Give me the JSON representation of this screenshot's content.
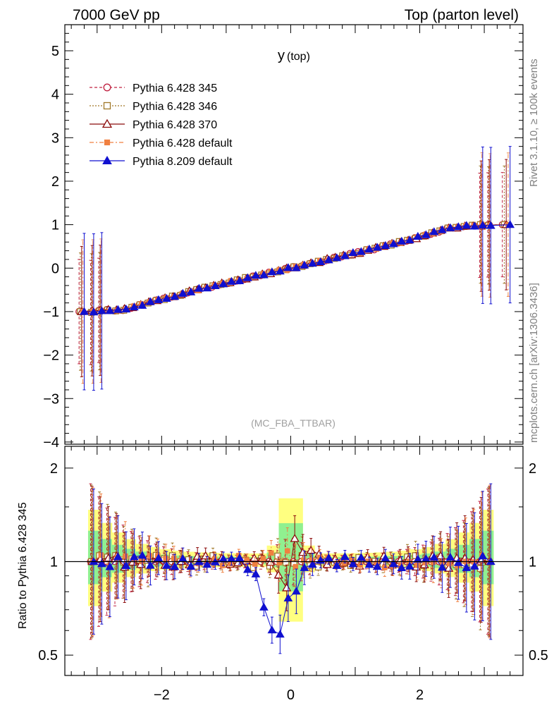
{
  "header": {
    "left": "7000 GeV pp",
    "right": "Top (parton level)"
  },
  "side_text": {
    "rivet": "Rivet 3.1.10, ≥ 100k events",
    "mcplots": "mcplots.cern.ch [arXiv:1306.3436]"
  },
  "chart_data": [
    {
      "type": "line",
      "title": "y",
      "title_sub": "(top)",
      "annotation": "(MC_FBA_TTBAR)",
      "xlabel": "",
      "ylabel": "",
      "xlim": [
        -3.5,
        3.6
      ],
      "ylim": [
        -4.05,
        5.6
      ],
      "y_ticks": [
        -4,
        -3,
        -2,
        -1,
        0,
        1,
        2,
        3,
        4,
        5
      ],
      "y_tick_labels": [
        "−4",
        "−3",
        "−2",
        "−1",
        "0",
        "1",
        "2",
        "3",
        "4",
        "5"
      ],
      "legend_position": "top-left",
      "series": [
        {
          "name": "Pythia 6.428 345",
          "color": "#c02040",
          "marker": "open-circle",
          "dash": "4,3"
        },
        {
          "name": "Pythia 6.428 346",
          "color": "#a07828",
          "marker": "open-square",
          "dash": "2,2"
        },
        {
          "name": "Pythia 6.428 370",
          "color": "#8b0a0a",
          "marker": "open-triangle",
          "dash": ""
        },
        {
          "name": "Pythia 6.428 default",
          "color": "#f08040",
          "marker": "filled-square",
          "dash": "6,3,2,3"
        },
        {
          "name": "Pythia 8.209 default",
          "color": "#1010d0",
          "marker": "filled-triangle",
          "dash": ""
        }
      ],
      "curve_description": "y rises from -1 at x=-3.14 through 0 at x=0 to 1 at x=3.14",
      "curve_x": [
        -3.1,
        -2.6,
        -2.0,
        -1.5,
        -1.0,
        -0.5,
        0.0,
        0.5,
        1.0,
        1.5,
        2.0,
        2.5,
        3.1
      ],
      "curve_y": [
        -1.0,
        -0.95,
        -0.72,
        -0.52,
        -0.34,
        -0.17,
        0.0,
        0.17,
        0.34,
        0.52,
        0.72,
        0.93,
        1.0
      ]
    },
    {
      "type": "line",
      "title": "",
      "ylabel": "Ratio to Pythia 6.428 345",
      "xlim": [
        -3.5,
        3.6
      ],
      "ylim": [
        0.43,
        2.35
      ],
      "y_scale": "log",
      "y_ticks": [
        0.5,
        1,
        2
      ],
      "y_tick_labels": [
        "0.5",
        "1",
        "2"
      ],
      "x_ticks": [
        -2,
        0,
        2
      ],
      "x_tick_labels": [
        "−2",
        "0",
        "2"
      ],
      "reference_line": 1,
      "bands": [
        "MC statistical uncertainty (green)",
        "total uncertainty (yellow)"
      ]
    }
  ]
}
